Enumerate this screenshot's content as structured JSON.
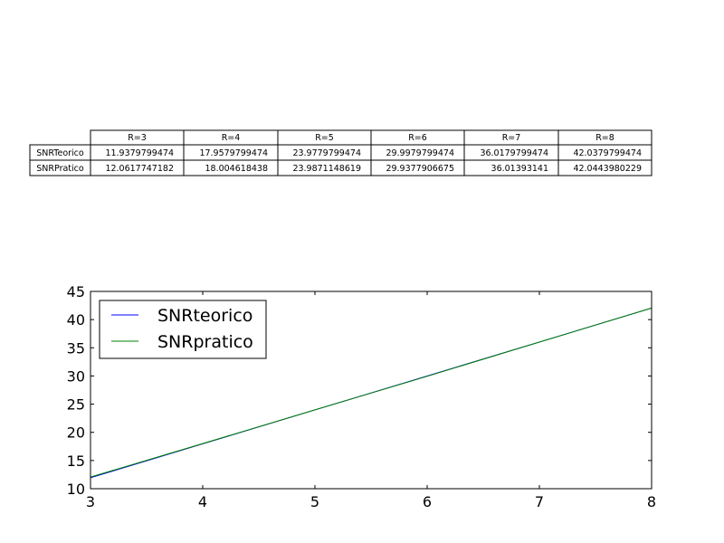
{
  "chart_data": [
    {
      "type": "table",
      "columns": [
        "R=3",
        "R=4",
        "R=5",
        "R=6",
        "R=7",
        "R=8"
      ],
      "rows": [
        {
          "label": "SNRTeorico",
          "values": [
            "11.9379799474",
            "17.9579799474",
            "23.9779799474",
            "29.9979799474",
            "36.0179799474",
            "42.0379799474"
          ]
        },
        {
          "label": "SNRPratico",
          "values": [
            "12.0617747182",
            "18.004618438",
            "23.9871148619",
            "29.9377906675",
            "36.01393141",
            "42.0443980229"
          ]
        }
      ]
    },
    {
      "type": "line",
      "x": [
        3,
        4,
        5,
        6,
        7,
        8
      ],
      "series": [
        {
          "name": "SNRteorico",
          "color": "#0000ff",
          "values": [
            11.9379799474,
            17.9579799474,
            23.9779799474,
            29.9979799474,
            36.0179799474,
            42.0379799474
          ]
        },
        {
          "name": "SNRpratico",
          "color": "#008000",
          "values": [
            12.0617747182,
            18.004618438,
            23.9871148619,
            29.9377906675,
            36.01393141,
            42.0443980229
          ]
        }
      ],
      "xlim": [
        3,
        8
      ],
      "ylim": [
        10,
        45
      ],
      "xticks": [
        3,
        4,
        5,
        6,
        7,
        8
      ],
      "yticks": [
        10,
        15,
        20,
        25,
        30,
        35,
        40,
        45
      ],
      "grid": false,
      "legend_position": "top-left"
    }
  ]
}
